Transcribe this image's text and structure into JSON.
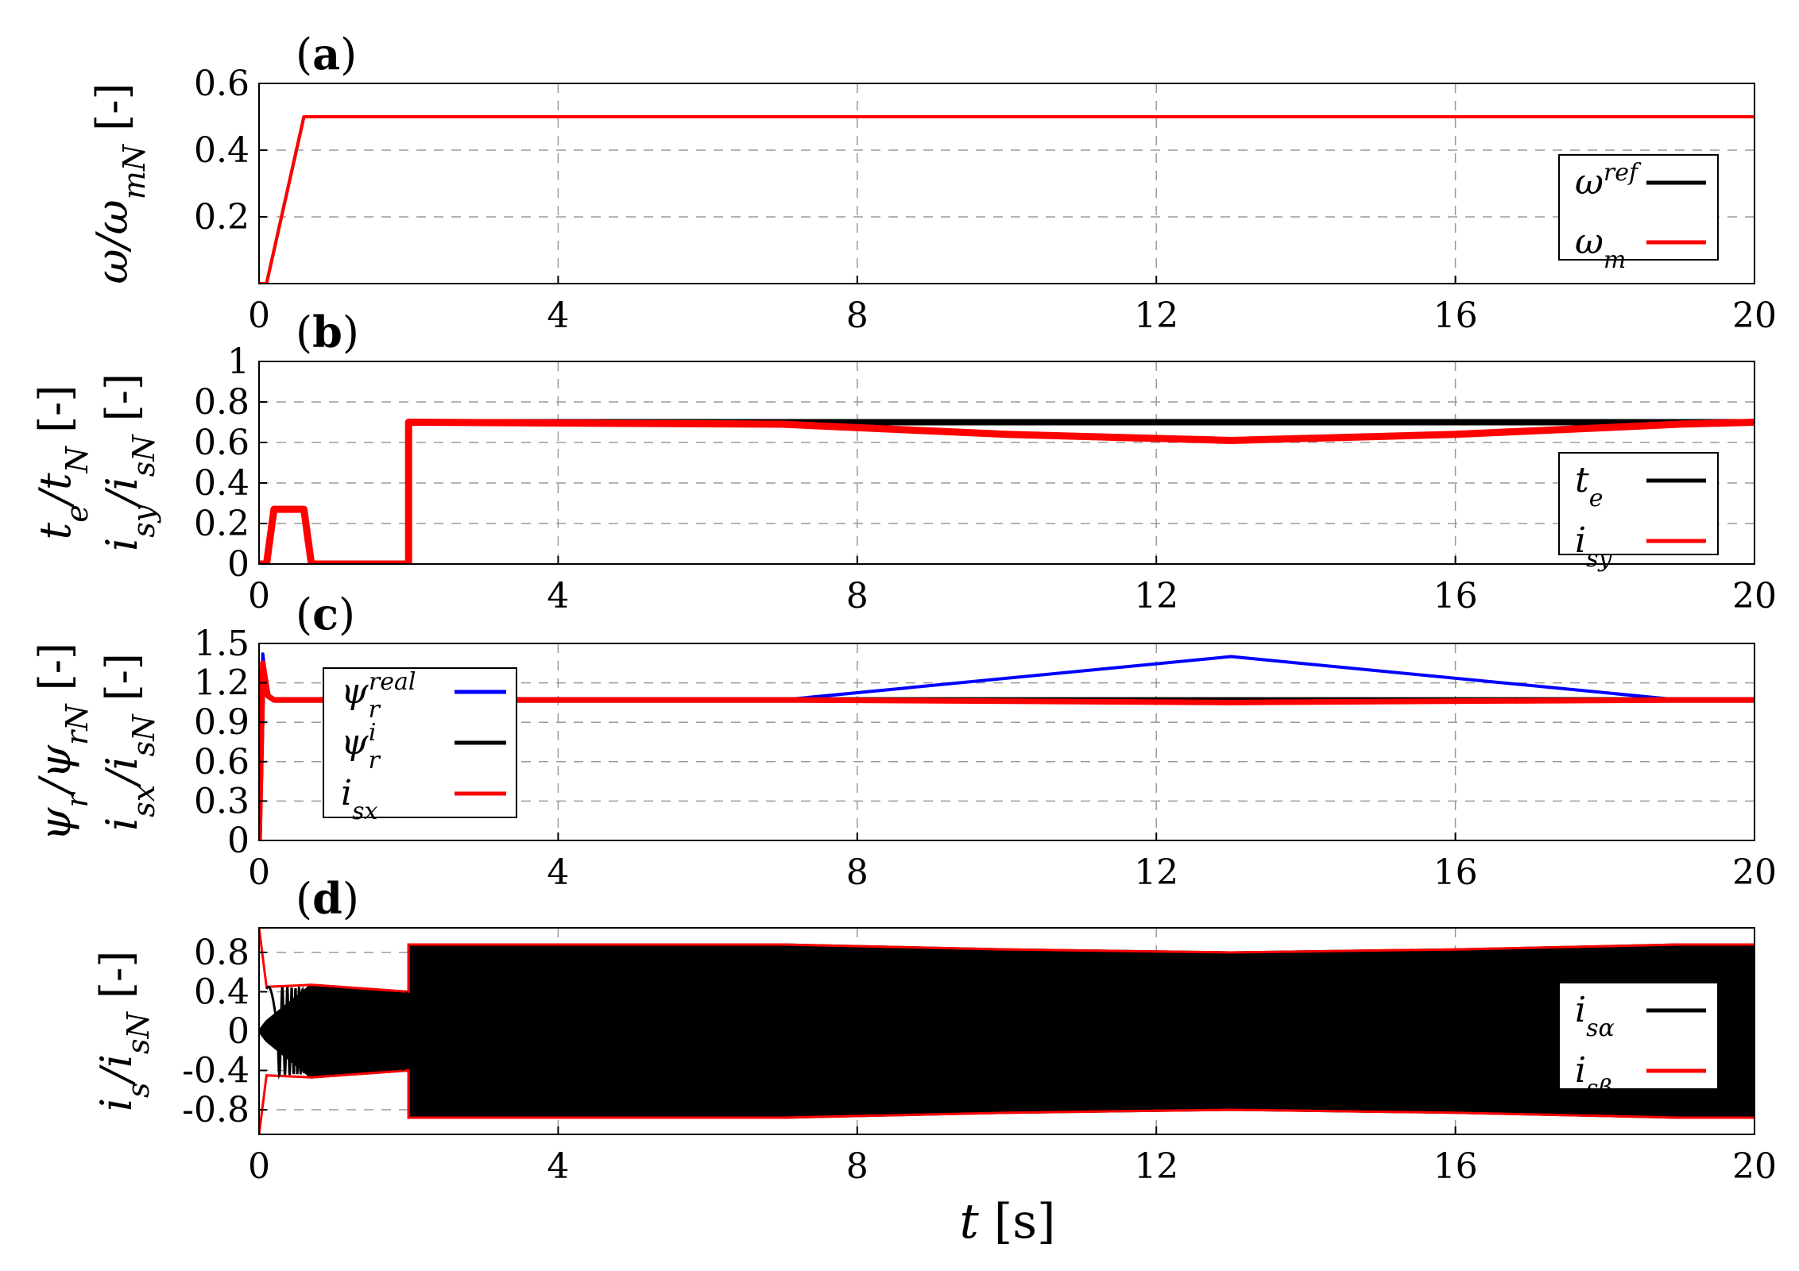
{
  "chart_data": [
    {
      "type": "line",
      "panel_label": "(a)",
      "ylabel": "ω/ω_mN [-]",
      "xlim": [
        0,
        20
      ],
      "ylim": [
        0,
        0.6
      ],
      "xticks": [
        "0",
        "4",
        "8",
        "12",
        "16",
        "20"
      ],
      "yticks": [
        "0.2",
        "0.4",
        "0.6"
      ],
      "grid": true,
      "legend_position": "lower-right",
      "series": [
        {
          "name": "ω^ref",
          "color": "#000000",
          "x": [
            0,
            0.1,
            0.6,
            20
          ],
          "y": [
            0,
            0,
            0.5,
            0.5
          ]
        },
        {
          "name": "ω_m",
          "color": "#ff0000",
          "x": [
            0,
            0.1,
            0.6,
            20
          ],
          "y": [
            0,
            0,
            0.5,
            0.5
          ]
        }
      ]
    },
    {
      "type": "line",
      "panel_label": "(b)",
      "ylabel": "t_e/t_N [-]   i_sy/i_sN [-]",
      "xlim": [
        0,
        20
      ],
      "ylim": [
        0,
        1
      ],
      "xticks": [
        "0",
        "4",
        "8",
        "12",
        "16",
        "20"
      ],
      "yticks": [
        "0",
        "0.2",
        "0.4",
        "0.6",
        "0.8",
        "1"
      ],
      "grid": true,
      "legend_position": "lower-right",
      "series": [
        {
          "name": "t_e",
          "color": "#000000",
          "x": [
            0,
            0.1,
            0.2,
            0.6,
            0.7,
            2.0,
            2.0,
            20
          ],
          "y": [
            0,
            0,
            0.27,
            0.27,
            0,
            0,
            0.7,
            0.7
          ]
        },
        {
          "name": "i_sy",
          "color": "#ff0000",
          "x": [
            0,
            0.1,
            0.2,
            0.6,
            0.7,
            2.0,
            2.0,
            7,
            10,
            13,
            16,
            19,
            20
          ],
          "y": [
            0,
            0,
            0.27,
            0.27,
            0,
            0,
            0.7,
            0.69,
            0.64,
            0.61,
            0.64,
            0.69,
            0.7
          ]
        }
      ]
    },
    {
      "type": "line",
      "panel_label": "(c)",
      "ylabel": "ψ_r/ψ_rN [-]   i_sx/i_sN [-]",
      "xlim": [
        0,
        20
      ],
      "ylim": [
        0,
        1.5
      ],
      "xticks": [
        "0",
        "4",
        "8",
        "12",
        "16",
        "20"
      ],
      "yticks": [
        "0",
        "0.3",
        "0.6",
        "0.9",
        "1.2",
        "1.5"
      ],
      "grid": true,
      "legend_position": "left",
      "series": [
        {
          "name": "ψ_r^real",
          "color": "#0000ff",
          "x": [
            0,
            0.05,
            0.12,
            0.2,
            7,
            13,
            19,
            20
          ],
          "y": [
            0,
            1.42,
            1.1,
            1.07,
            1.07,
            1.4,
            1.07,
            1.07
          ]
        },
        {
          "name": "ψ_r^i",
          "color": "#000000",
          "x": [
            0,
            0.05,
            0.12,
            0.2,
            20
          ],
          "y": [
            0,
            1.3,
            1.1,
            1.07,
            1.07
          ]
        },
        {
          "name": "i_sx",
          "color": "#ff0000",
          "x": [
            0,
            0.05,
            0.12,
            0.2,
            7,
            13,
            19,
            20
          ],
          "y": [
            0,
            1.35,
            1.1,
            1.07,
            1.07,
            1.05,
            1.07,
            1.07
          ]
        }
      ]
    },
    {
      "type": "line",
      "panel_label": "(d)",
      "ylabel": "i_s/i_sN [-]",
      "xlabel": "t [s]",
      "xlim": [
        0,
        20
      ],
      "ylim": [
        -1.05,
        1.05
      ],
      "xticks": [
        "0",
        "4",
        "8",
        "12",
        "16",
        "20"
      ],
      "yticks": [
        "-0.8",
        "-0.4",
        "0",
        "0.4",
        "0.8"
      ],
      "grid": true,
      "legend_position": "lower-right",
      "series": [
        {
          "name": "i_sα",
          "color": "#000000",
          "envelope_t": [
            0,
            0.1,
            0.7,
            2.0,
            2.0,
            7,
            10,
            13,
            16,
            19,
            20
          ],
          "envelope_amp": [
            0,
            0.1,
            0.47,
            0.4,
            0.88,
            0.88,
            0.83,
            0.8,
            0.83,
            0.88,
            0.88
          ]
        },
        {
          "name": "i_sβ",
          "color": "#ff0000",
          "envelope_t": [
            0,
            0.1,
            0.7,
            2.0,
            2.0,
            7,
            10,
            13,
            16,
            19,
            20
          ],
          "envelope_amp": [
            1.05,
            0.45,
            0.47,
            0.4,
            0.88,
            0.88,
            0.83,
            0.8,
            0.83,
            0.88,
            0.88
          ]
        }
      ]
    }
  ],
  "legend_labels": {
    "a": [
      {
        "base": "ω",
        "sup": "ref"
      },
      {
        "base": "ω",
        "sub": "m"
      }
    ],
    "b": [
      {
        "base": "t",
        "sub": "e"
      },
      {
        "base": "i",
        "sub": "sy"
      }
    ],
    "c": [
      {
        "base": "ψ",
        "sub": "r",
        "sup": "real"
      },
      {
        "base": "ψ",
        "sub": "r",
        "sup": "i"
      },
      {
        "base": "i",
        "sub": "sx"
      }
    ],
    "d": [
      {
        "base": "i",
        "sub": "sα"
      },
      {
        "base": "i",
        "sub": "sβ"
      }
    ]
  }
}
